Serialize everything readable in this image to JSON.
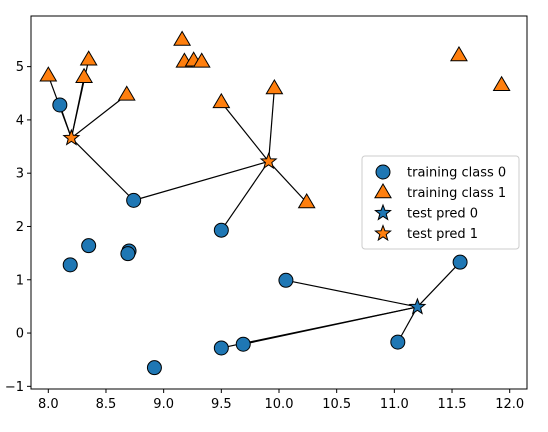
{
  "chart_data": {
    "type": "scatter",
    "title": "",
    "xlabel": "",
    "ylabel": "",
    "xlim": [
      7.85,
      12.15
    ],
    "ylim": [
      -1.05,
      5.95
    ],
    "x_ticks": [
      8.0,
      8.5,
      9.0,
      9.5,
      10.0,
      10.5,
      11.0,
      11.5,
      12.0
    ],
    "x_tick_labels": [
      "8.0",
      "8.5",
      "9.0",
      "9.5",
      "10.0",
      "10.5",
      "11.0",
      "11.5",
      "12.0"
    ],
    "y_ticks": [
      -1,
      0,
      1,
      2,
      3,
      4,
      5
    ],
    "y_tick_labels": [
      "−1",
      "0",
      "1",
      "2",
      "3",
      "4",
      "5"
    ],
    "grid": false,
    "legend_position": "center-right",
    "series": [
      {
        "name": "training class 0",
        "marker": "circle",
        "color": "#1f77b4",
        "points": [
          [
            8.1,
            4.28
          ],
          [
            8.74,
            2.49
          ],
          [
            9.5,
            1.93
          ],
          [
            8.35,
            1.64
          ],
          [
            8.7,
            1.54
          ],
          [
            8.69,
            1.49
          ],
          [
            8.19,
            1.28
          ],
          [
            10.06,
            0.99
          ],
          [
            11.57,
            1.33
          ],
          [
            9.69,
            -0.21
          ],
          [
            9.5,
            -0.28
          ],
          [
            11.03,
            -0.17
          ],
          [
            8.92,
            -0.65
          ]
        ]
      },
      {
        "name": "training class 1",
        "marker": "triangle",
        "color": "#ff7f0e",
        "points": [
          [
            8.0,
            4.83
          ],
          [
            8.31,
            4.8
          ],
          [
            8.35,
            5.13
          ],
          [
            8.68,
            4.47
          ],
          [
            9.16,
            5.5
          ],
          [
            9.18,
            5.09
          ],
          [
            9.26,
            5.11
          ],
          [
            9.33,
            5.09
          ],
          [
            9.5,
            4.33
          ],
          [
            9.96,
            4.59
          ],
          [
            10.24,
            2.45
          ],
          [
            11.56,
            5.21
          ],
          [
            11.93,
            4.65
          ]
        ]
      },
      {
        "name": "test pred 0",
        "marker": "star",
        "color": "#1f77b4",
        "points": [
          [
            11.2,
            0.49
          ]
        ]
      },
      {
        "name": "test pred 1",
        "marker": "star",
        "color": "#ff7f0e",
        "points": [
          [
            8.2,
            3.66
          ],
          [
            9.91,
            3.22
          ]
        ]
      }
    ],
    "neighbor_lines": [
      {
        "from": [
          8.2,
          3.66
        ],
        "to": [
          8.1,
          4.28
        ]
      },
      {
        "from": [
          8.2,
          3.66
        ],
        "to": [
          8.0,
          4.83
        ]
      },
      {
        "from": [
          8.2,
          3.66
        ],
        "to": [
          8.31,
          4.8
        ]
      },
      {
        "from": [
          8.2,
          3.66
        ],
        "to": [
          8.35,
          5.13
        ]
      },
      {
        "from": [
          8.2,
          3.66
        ],
        "to": [
          8.68,
          4.47
        ]
      },
      {
        "from": [
          8.2,
          3.66
        ],
        "to": [
          8.74,
          2.49
        ]
      },
      {
        "from": [
          9.91,
          3.22
        ],
        "to": [
          8.74,
          2.49
        ]
      },
      {
        "from": [
          9.91,
          3.22
        ],
        "to": [
          9.5,
          4.33
        ]
      },
      {
        "from": [
          9.91,
          3.22
        ],
        "to": [
          9.96,
          4.59
        ]
      },
      {
        "from": [
          9.91,
          3.22
        ],
        "to": [
          10.24,
          2.45
        ]
      },
      {
        "from": [
          9.91,
          3.22
        ],
        "to": [
          9.5,
          1.93
        ]
      },
      {
        "from": [
          11.2,
          0.49
        ],
        "to": [
          11.57,
          1.33
        ]
      },
      {
        "from": [
          11.2,
          0.49
        ],
        "to": [
          10.06,
          0.99
        ]
      },
      {
        "from": [
          11.2,
          0.49
        ],
        "to": [
          9.69,
          -0.21
        ]
      },
      {
        "from": [
          11.2,
          0.49
        ],
        "to": [
          9.5,
          -0.28
        ]
      },
      {
        "from": [
          11.2,
          0.49
        ],
        "to": [
          11.03,
          -0.17
        ]
      }
    ]
  }
}
